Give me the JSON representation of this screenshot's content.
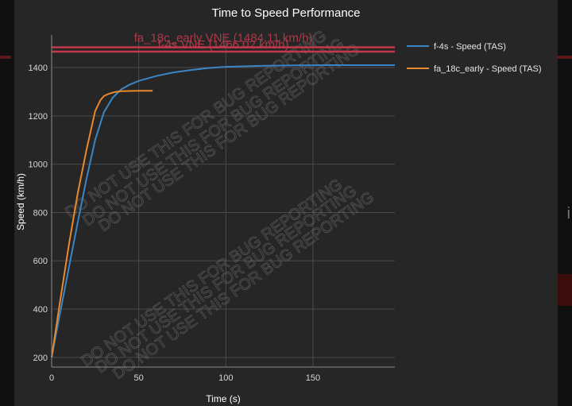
{
  "chart_data": {
    "type": "line",
    "title": "Time to Speed Performance",
    "xlabel": "Time (s)",
    "ylabel": "Speed (km/h)",
    "xlim": [
      0,
      197
    ],
    "ylim": [
      160,
      1535
    ],
    "xticks": [
      0,
      50,
      100,
      150
    ],
    "yticks": [
      200,
      400,
      600,
      800,
      1000,
      1200,
      1400
    ],
    "grid": true,
    "legend_position": "top-right",
    "series": [
      {
        "name": "f-4s - Speed (TAS)",
        "color": "#3a86c4",
        "x": [
          0,
          5,
          10,
          15,
          20,
          25,
          30,
          35,
          40,
          45,
          50,
          60,
          70,
          80,
          90,
          100,
          120,
          140,
          160,
          180,
          197
        ],
        "y": [
          200,
          390,
          575,
          760,
          940,
          1100,
          1215,
          1275,
          1310,
          1330,
          1345,
          1365,
          1380,
          1390,
          1398,
          1403,
          1407,
          1409,
          1410,
          1410,
          1410
        ]
      },
      {
        "name": "fa_18c_early - Speed (TAS)",
        "color": "#e8892c",
        "x": [
          0,
          5,
          10,
          15,
          20,
          25,
          28,
          30,
          33,
          36,
          40,
          45,
          50,
          58
        ],
        "y": [
          200,
          440,
          670,
          880,
          1060,
          1220,
          1265,
          1282,
          1292,
          1298,
          1302,
          1303,
          1304,
          1304
        ]
      }
    ],
    "reference_lines": [
      {
        "label": "fa_18c_early VNE (1484.11 km/h)",
        "y": 1484.11,
        "color": "#c2394a"
      },
      {
        "label": "f-4s VNE (1466.02 km/h)",
        "y": 1466.02,
        "color": "#c2394a"
      }
    ],
    "watermark": "DO NOT USE THIS FOR BUG REPORTING"
  }
}
